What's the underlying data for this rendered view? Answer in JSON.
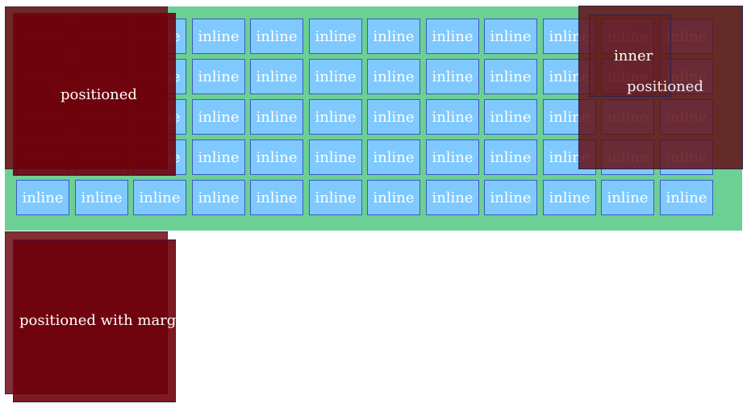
{
  "inline_label": "inline",
  "inline_box_count": 60,
  "positioned_label": "positioned",
  "positioned_with_margin_label": "positioned with margin",
  "inner_label": "inner",
  "colors": {
    "container_green": "#6ccf94",
    "inline_fill": "#7fc9ff",
    "inline_border": "#3b5bbf",
    "positioned_fill": "#6e000a"
  }
}
